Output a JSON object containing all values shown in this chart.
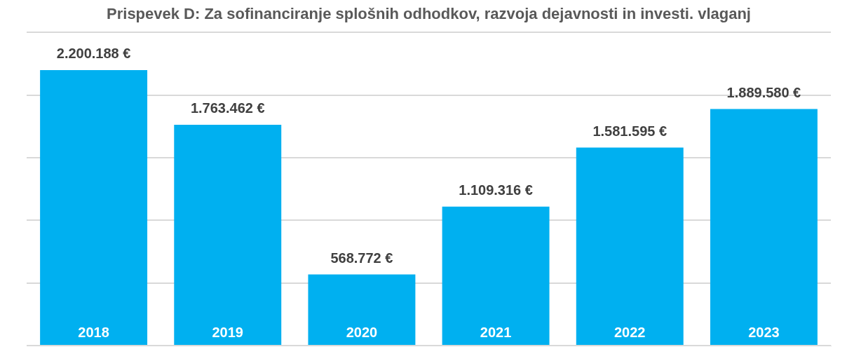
{
  "chart_data": {
    "type": "bar",
    "title": "Prispevek D: Za sofinanciranje splošnih odhodkov, razvoja dejavnosti in investi. vlaganj",
    "categories": [
      "2018",
      "2019",
      "2020",
      "2021",
      "2022",
      "2023"
    ],
    "values": [
      2200188,
      1763462,
      568772,
      1109316,
      1581595,
      1889580
    ],
    "value_labels": [
      "2.200.188 €",
      "1.763.462 €",
      "568.772 €",
      "1.109.316 €",
      "1.581.595 €",
      "1.889.580 €"
    ],
    "color": "#00b0f0",
    "ylim": [
      0,
      2500000
    ],
    "yticks": [
      {
        "value": 0,
        "label": null
      },
      {
        "value": 500000,
        "label": null
      },
      {
        "value": 1000000,
        "label": null
      },
      {
        "value": 1500000,
        "label": null
      },
      {
        "value": 2000000,
        "label": null
      },
      {
        "value": 2500000,
        "label": null
      }
    ],
    "grid": "y",
    "tick_labels": "x",
    "legend": false
  }
}
